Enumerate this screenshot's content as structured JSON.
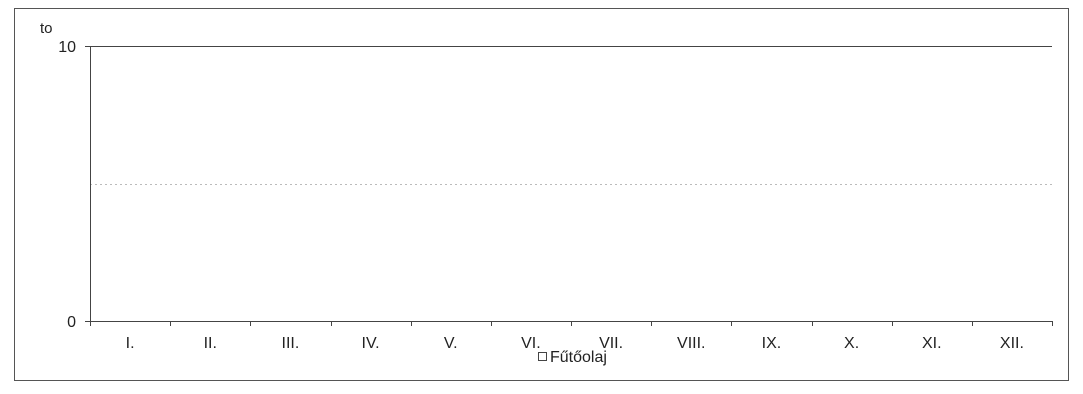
{
  "chart_data": {
    "type": "bar",
    "title": "",
    "xlabel": "",
    "ylabel": "to",
    "ylim": [
      0,
      10
    ],
    "yticks": [
      0,
      10
    ],
    "grid": true,
    "gridlines": [
      5,
      10
    ],
    "categories": [
      "I.",
      "II.",
      "III.",
      "IV.",
      "V.",
      "VI.",
      "VII.",
      "VIII.",
      "IX.",
      "X.",
      "XI.",
      "XII."
    ],
    "series": [
      {
        "name": "Fűtőolaj",
        "values": [
          0,
          0,
          0,
          0,
          0,
          0,
          0,
          0,
          0,
          0,
          0,
          0
        ]
      }
    ],
    "legend": "bottom-center"
  },
  "colors": {
    "frame": "#555555",
    "axis": "#444444",
    "gridline": "#bbbbbb",
    "text": "#222222"
  }
}
